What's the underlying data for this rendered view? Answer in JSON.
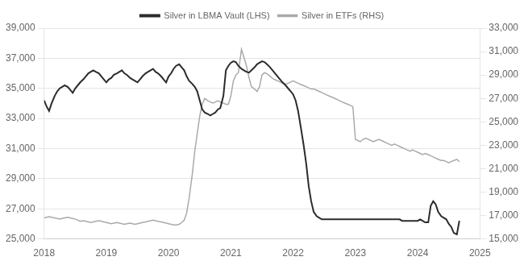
{
  "chart_data": {
    "type": "line",
    "x": [
      2018.0,
      2018.04,
      2018.08,
      2018.12,
      2018.17,
      2018.21,
      2018.25,
      2018.29,
      2018.33,
      2018.38,
      2018.42,
      2018.46,
      2018.5,
      2018.54,
      2018.58,
      2018.63,
      2018.67,
      2018.71,
      2018.75,
      2018.79,
      2018.83,
      2018.88,
      2018.92,
      2018.96,
      2019.0,
      2019.04,
      2019.08,
      2019.12,
      2019.17,
      2019.21,
      2019.25,
      2019.29,
      2019.33,
      2019.38,
      2019.42,
      2019.46,
      2019.5,
      2019.54,
      2019.58,
      2019.63,
      2019.67,
      2019.71,
      2019.75,
      2019.79,
      2019.83,
      2019.88,
      2019.92,
      2019.96,
      2020.0,
      2020.04,
      2020.08,
      2020.12,
      2020.17,
      2020.21,
      2020.25,
      2020.29,
      2020.33,
      2020.38,
      2020.42,
      2020.46,
      2020.5,
      2020.54,
      2020.58,
      2020.63,
      2020.67,
      2020.71,
      2020.75,
      2020.79,
      2020.83,
      2020.88,
      2020.92,
      2020.96,
      2021.0,
      2021.04,
      2021.08,
      2021.12,
      2021.17,
      2021.21,
      2021.25,
      2021.29,
      2021.33,
      2021.38,
      2021.42,
      2021.46,
      2021.5,
      2021.54,
      2021.58,
      2021.63,
      2021.67,
      2021.71,
      2021.75,
      2021.79,
      2021.83,
      2021.88,
      2021.92,
      2021.96,
      2022.0,
      2022.04,
      2022.08,
      2022.12,
      2022.17,
      2022.21,
      2022.25,
      2022.29,
      2022.33,
      2022.38,
      2022.42,
      2022.46,
      2022.5,
      2022.54,
      2022.58,
      2022.63,
      2022.67,
      2022.71,
      2022.75,
      2022.79,
      2022.83,
      2022.88,
      2022.92,
      2022.96,
      2023.0,
      2023.04,
      2023.08,
      2023.12,
      2023.17,
      2023.21,
      2023.25,
      2023.29,
      2023.33,
      2023.38,
      2023.42,
      2023.46,
      2023.5,
      2023.54,
      2023.58,
      2023.63,
      2023.67,
      2023.71,
      2023.75,
      2023.79,
      2023.83,
      2023.88,
      2023.92,
      2023.96,
      2024.0,
      2024.04,
      2024.08,
      2024.12,
      2024.17,
      2024.21,
      2024.25,
      2024.29,
      2024.33,
      2024.38,
      2024.42,
      2024.46,
      2024.5,
      2024.54,
      2024.58,
      2024.63,
      2024.67
    ],
    "series": [
      {
        "name": "Silver in LBMA Vault (LHS)",
        "color": "#2b2b2b",
        "values": [
          34200,
          33800,
          33500,
          34000,
          34500,
          34800,
          35000,
          35100,
          35200,
          35100,
          34900,
          34700,
          35000,
          35200,
          35400,
          35600,
          35800,
          36000,
          36100,
          36200,
          36100,
          36000,
          35800,
          35600,
          35400,
          35600,
          35700,
          35900,
          36000,
          36100,
          36200,
          36000,
          35900,
          35700,
          35600,
          35500,
          35400,
          35600,
          35800,
          36000,
          36100,
          36200,
          36300,
          36100,
          36000,
          35800,
          35600,
          35400,
          35800,
          36000,
          36300,
          36500,
          36600,
          36400,
          36200,
          35800,
          35500,
          35300,
          35100,
          34800,
          34200,
          33600,
          33400,
          33300,
          33200,
          33300,
          33400,
          33600,
          33700,
          34500,
          36200,
          36500,
          36700,
          36800,
          36750,
          36500,
          36300,
          36200,
          36100,
          36050,
          36200,
          36400,
          36600,
          36700,
          36800,
          36750,
          36600,
          36400,
          36200,
          36000,
          35800,
          35600,
          35400,
          35200,
          35000,
          34800,
          34600,
          34200,
          33500,
          32500,
          31200,
          30000,
          28500,
          27500,
          26800,
          26500,
          26400,
          26300,
          26300,
          26300,
          26300,
          26300,
          26300,
          26300,
          26300,
          26300,
          26300,
          26300,
          26300,
          26300,
          26300,
          26300,
          26300,
          26300,
          26300,
          26300,
          26300,
          26300,
          26300,
          26300,
          26300,
          26300,
          26300,
          26300,
          26300,
          26300,
          26300,
          26300,
          26200,
          26200,
          26200,
          26200,
          26200,
          26200,
          26200,
          26300,
          26200,
          26100,
          26100,
          27200,
          27500,
          27300,
          26800,
          26500,
          26400,
          26300,
          26000,
          25800,
          25400,
          25300,
          26200
        ]
      },
      {
        "name": "Silver in ETFs (RHS)",
        "color": "#aaaaaa",
        "axis": "y2",
        "values": [
          16800,
          16850,
          16900,
          16850,
          16800,
          16750,
          16700,
          16750,
          16800,
          16850,
          16800,
          16750,
          16700,
          16600,
          16500,
          16550,
          16500,
          16450,
          16400,
          16450,
          16500,
          16550,
          16500,
          16450,
          16400,
          16350,
          16300,
          16350,
          16400,
          16350,
          16300,
          16250,
          16300,
          16350,
          16300,
          16250,
          16300,
          16350,
          16400,
          16450,
          16500,
          16550,
          16600,
          16550,
          16500,
          16450,
          16400,
          16350,
          16300,
          16250,
          16200,
          16200,
          16250,
          16400,
          16600,
          17200,
          18500,
          20500,
          22500,
          24000,
          25500,
          26500,
          27000,
          26800,
          26700,
          26600,
          26700,
          26800,
          26700,
          26600,
          26500,
          26500,
          27200,
          28500,
          29000,
          29200,
          31200,
          30500,
          29800,
          28800,
          28000,
          27800,
          27600,
          28000,
          29000,
          29200,
          29100,
          28900,
          28700,
          28600,
          28500,
          28400,
          28300,
          28200,
          28300,
          28400,
          28500,
          28400,
          28300,
          28200,
          28100,
          28000,
          27900,
          27800,
          27800,
          27700,
          27600,
          27500,
          27400,
          27300,
          27200,
          27100,
          27000,
          26900,
          26800,
          26700,
          26600,
          26500,
          26400,
          26300,
          23500,
          23400,
          23300,
          23500,
          23600,
          23500,
          23400,
          23300,
          23400,
          23500,
          23400,
          23300,
          23200,
          23100,
          23000,
          23100,
          23000,
          22900,
          22800,
          22700,
          22600,
          22500,
          22600,
          22500,
          22400,
          22300,
          22200,
          22300,
          22200,
          22100,
          22000,
          21900,
          21800,
          21700,
          21700,
          21600,
          21500,
          21600,
          21700,
          21800,
          21600
        ]
      }
    ],
    "xlim": [
      2018,
      2025
    ],
    "xticks": [
      2018,
      2019,
      2020,
      2021,
      2022,
      2023,
      2024,
      2025
    ],
    "ylim": [
      25000,
      39000
    ],
    "yticks": [
      {
        "value": 25000,
        "label": "25,000"
      },
      {
        "value": 27000,
        "label": "27,000"
      },
      {
        "value": 29000,
        "label": "29,000"
      },
      {
        "value": 31000,
        "label": "31,000"
      },
      {
        "value": 33000,
        "label": "33,000"
      },
      {
        "value": 35000,
        "label": "35,000"
      },
      {
        "value": 37000,
        "label": "37,000"
      },
      {
        "value": 39000,
        "label": "39,000"
      }
    ],
    "y2lim": [
      15000,
      33000
    ],
    "y2ticks": [
      {
        "value": 15000,
        "label": "15,000"
      },
      {
        "value": 17000,
        "label": "17,000"
      },
      {
        "value": 19000,
        "label": "19,000"
      },
      {
        "value": 21000,
        "label": "21,000"
      },
      {
        "value": 23000,
        "label": "23,000"
      },
      {
        "value": 25000,
        "label": "25,000"
      },
      {
        "value": 27000,
        "label": "27,000"
      },
      {
        "value": 29000,
        "label": "29,000"
      },
      {
        "value": 31000,
        "label": "31,000"
      },
      {
        "value": 33000,
        "label": "33,000"
      }
    ],
    "grid": true,
    "legend": "top"
  }
}
